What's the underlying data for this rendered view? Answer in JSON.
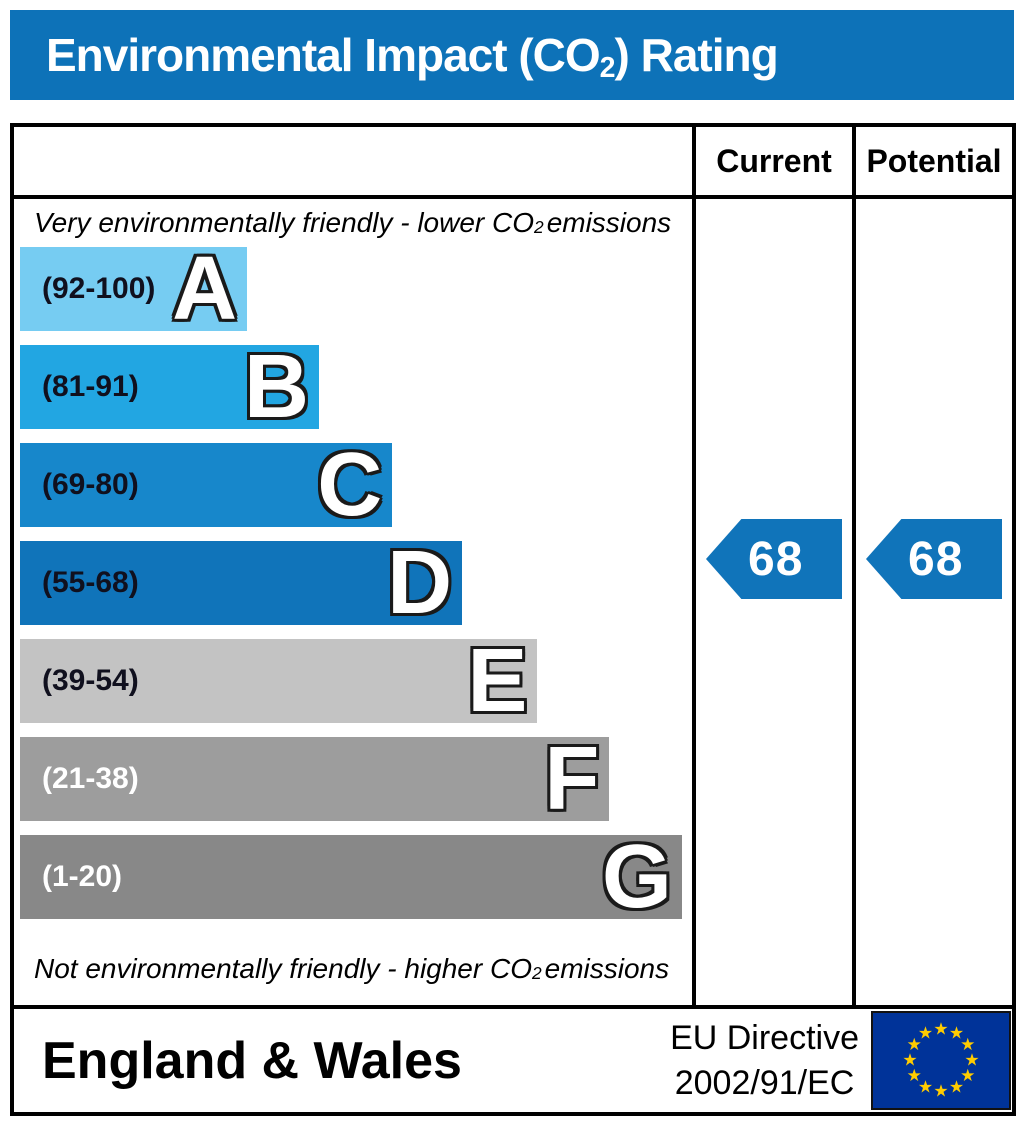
{
  "title": {
    "pre": "Environmental Impact (CO",
    "sub": "2",
    "post": ") Rating"
  },
  "header": {
    "current": "Current",
    "potential": "Potential"
  },
  "notes": {
    "top": {
      "pre": "Very environmentally friendly - lower CO",
      "sub": "2",
      "post": " emissions"
    },
    "bottom": {
      "pre": "Not environmentally friendly - higher CO",
      "sub": "2",
      "post": " emissions"
    }
  },
  "bands": [
    {
      "letter": "A",
      "range": "(92-100)",
      "color": "#76ccf2",
      "width_pct": 33.8,
      "label_color": "#10101e"
    },
    {
      "letter": "B",
      "range": "(81-91)",
      "color": "#22a6e2",
      "width_pct": 44.5,
      "label_color": "#10101e"
    },
    {
      "letter": "C",
      "range": "(69-80)",
      "color": "#1787cb",
      "width_pct": 55.4,
      "label_color": "#10101e"
    },
    {
      "letter": "D",
      "range": "(55-68)",
      "color": "#1074ba",
      "width_pct": 65.8,
      "label_color": "#10101e"
    },
    {
      "letter": "E",
      "range": "(39-54)",
      "color": "#c3c3c3",
      "width_pct": 77.0,
      "label_color": "#10101e"
    },
    {
      "letter": "F",
      "range": "(21-38)",
      "color": "#9d9d9d",
      "width_pct": 87.7,
      "label_color": "#ffffff"
    },
    {
      "letter": "G",
      "range": "(1-20)",
      "color": "#888888",
      "width_pct": 98.5,
      "label_color": "#ffffff"
    }
  ],
  "ratings": {
    "current": {
      "value": "68",
      "band": "D"
    },
    "potential": {
      "value": "68",
      "band": "D"
    }
  },
  "arrow_color": "#1074ba",
  "footer": {
    "region": "England & Wales",
    "directive_line1": "EU Directive",
    "directive_line2": "2002/91/EC"
  },
  "colors": {
    "title_bar": "#0d72b8",
    "border": "#000000",
    "eu_flag_blue": "#003399",
    "eu_flag_star": "#ffcc00"
  },
  "chart_data": {
    "type": "bar",
    "title": "Environmental Impact (CO2) Rating",
    "categories": [
      "A (92-100)",
      "B (81-91)",
      "C (69-80)",
      "D (55-68)",
      "E (39-54)",
      "F (21-38)",
      "G (1-20)"
    ],
    "bar_lengths_pct": [
      33.8,
      44.5,
      55.4,
      65.8,
      77.0,
      87.7,
      98.5
    ],
    "scale_range": [
      1,
      100
    ],
    "series": [
      {
        "name": "Current",
        "value": 68,
        "band": "D"
      },
      {
        "name": "Potential",
        "value": 68,
        "band": "D"
      }
    ],
    "top_annotation": "Very environmentally friendly - lower CO2 emissions",
    "bottom_annotation": "Not environmentally friendly - higher CO2 emissions",
    "region_label": "England & Wales",
    "directive_label": "EU Directive 2002/91/EC",
    "legend_position": "none",
    "grid": false
  }
}
